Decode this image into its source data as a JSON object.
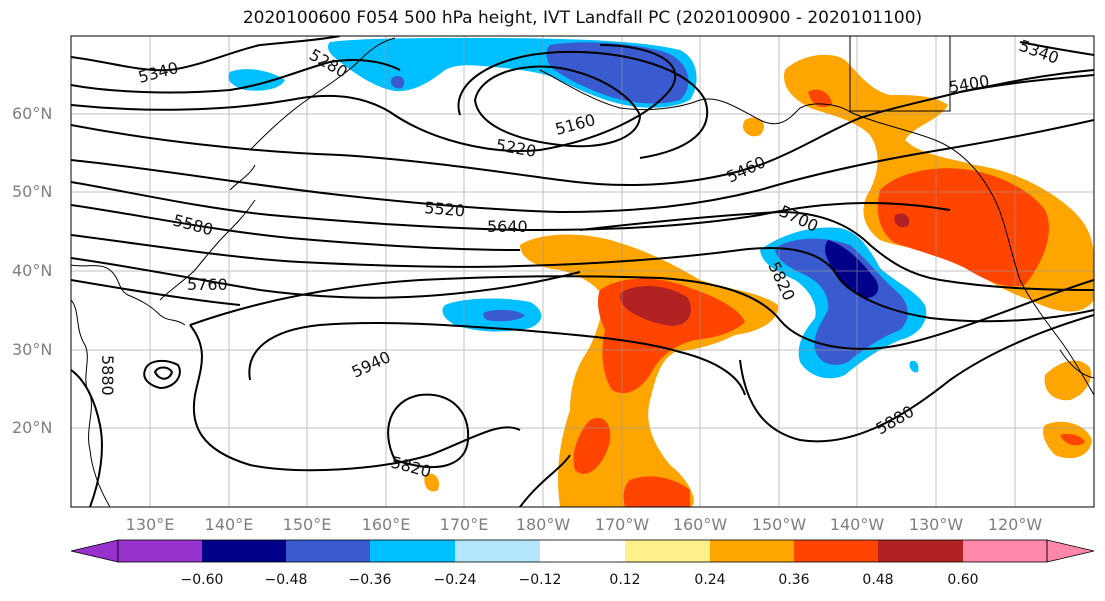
{
  "title": "2020100600 F054 500 hPa height, IVT Landfall PC (2020100900 - 2020101100)",
  "colors": {
    "purple": "#9932cc",
    "navy": "#00008b",
    "blue": "#3a5bcf",
    "cyan": "#00bfff",
    "lightblue": "#b3e5fc",
    "white": "#ffffff",
    "yellow": "#fff08a",
    "orange": "#ffa500",
    "redorange": "#ff4500",
    "darkred": "#b22222",
    "pink": "#ff88aa"
  },
  "latitudes": [
    "60°N",
    "50°N",
    "40°N",
    "30°N",
    "20°N"
  ],
  "longitudes": [
    "130°E",
    "140°E",
    "150°E",
    "160°E",
    "170°E",
    "180°W",
    "170°W",
    "160°W",
    "150°W",
    "140°W",
    "130°W",
    "120°W"
  ],
  "colorbar": {
    "ticks": [
      "−0.60",
      "−0.48",
      "−0.36",
      "−0.24",
      "−0.12",
      "0.12",
      "0.24",
      "0.36",
      "0.48",
      "0.60"
    ]
  },
  "contour_labels": [
    "5340",
    "5280",
    "5220",
    "5160",
    "5460",
    "5400",
    "5340",
    "5520",
    "5580",
    "5640",
    "5700",
    "5760",
    "5820",
    "5940",
    "5880",
    "5820",
    "5880"
  ]
}
